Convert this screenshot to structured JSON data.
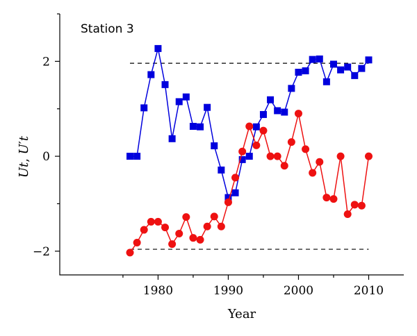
{
  "chart_data": {
    "type": "line",
    "title": "",
    "annotation": "Station 3",
    "xlabel": "Year",
    "ylabel_parts": {
      "u": "U",
      "t1": "t",
      "sep": ", ",
      "u2": "U",
      "prime": "′",
      "t2": "t"
    },
    "xlim": [
      1966,
      2015
    ],
    "ylim": [
      -2.5,
      3.0
    ],
    "x_ticks": [
      1980,
      1990,
      2000,
      2010
    ],
    "y_ticks": [
      -2,
      0,
      2
    ],
    "grid": false,
    "legend": "none",
    "reference_lines": [
      {
        "y": 1.96,
        "x_range": [
          1976,
          2010
        ],
        "style": "dashed"
      },
      {
        "y": -1.96,
        "x_range": [
          1976,
          2010
        ],
        "style": "dashed"
      }
    ],
    "x": [
      1976,
      1977,
      1978,
      1979,
      1980,
      1981,
      1982,
      1983,
      1984,
      1985,
      1986,
      1987,
      1988,
      1989,
      1990,
      1991,
      1992,
      1993,
      1994,
      1995,
      1996,
      1997,
      1998,
      1999,
      2000,
      2001,
      2002,
      2003,
      2004,
      2005,
      2006,
      2007,
      2008,
      2009,
      2010
    ],
    "series": [
      {
        "key": "ut",
        "color": "#0000dd",
        "marker": "square",
        "values": [
          0.0,
          0.0,
          1.02,
          1.72,
          2.27,
          1.51,
          0.37,
          1.15,
          1.25,
          0.63,
          0.62,
          1.03,
          0.22,
          -0.29,
          -0.87,
          -0.77,
          -0.07,
          0.0,
          0.62,
          0.88,
          1.19,
          0.96,
          0.93,
          1.43,
          1.77,
          1.8,
          2.04,
          2.05,
          1.57,
          1.94,
          1.82,
          1.88,
          1.7,
          1.85,
          2.03
        ]
      },
      {
        "key": "u_prime_t",
        "color": "#ee1111",
        "marker": "circle",
        "values": [
          -2.03,
          -1.82,
          -1.55,
          -1.38,
          -1.38,
          -1.5,
          -1.85,
          -1.63,
          -1.28,
          -1.72,
          -1.76,
          -1.48,
          -1.27,
          -1.48,
          -0.97,
          -0.45,
          0.1,
          0.63,
          0.23,
          0.54,
          0.0,
          0.0,
          -0.2,
          0.3,
          0.9,
          0.15,
          -0.35,
          -0.12,
          -0.87,
          -0.9,
          0.0,
          -1.22,
          -1.02,
          -1.04,
          0.0
        ]
      }
    ]
  }
}
